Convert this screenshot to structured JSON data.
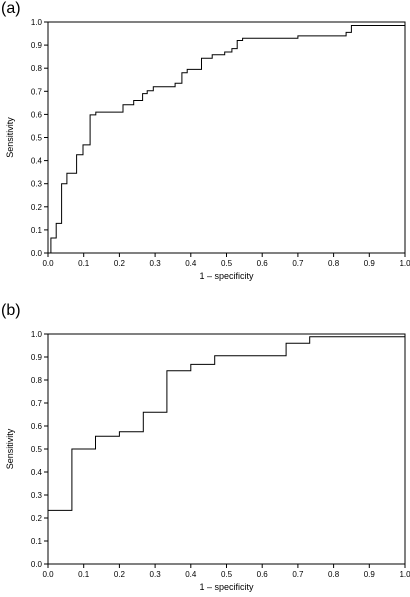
{
  "chart_data": [
    {
      "panel_label": "(a)",
      "type": "line",
      "step": true,
      "xlabel": "1 – specificity",
      "ylabel": "Sensitivity",
      "xlim": [
        0,
        1
      ],
      "ylim": [
        0,
        1
      ],
      "xticks": [
        "0.0",
        "0.1",
        "0.2",
        "0.3",
        "0.4",
        "0.5",
        "0.6",
        "0.7",
        "0.8",
        "0.9",
        "1.0"
      ],
      "yticks": [
        "0.0",
        "0.1",
        "0.2",
        "0.3",
        "0.4",
        "0.5",
        "0.6",
        "0.7",
        "0.8",
        "0.9",
        "1.0"
      ],
      "grid": false,
      "series": [
        {
          "x": [
            0,
            0.008,
            0.008,
            0.023,
            0.023,
            0.038,
            0.038,
            0.053,
            0.053,
            0.08,
            0.08,
            0.098,
            0.098,
            0.118,
            0.118,
            0.134,
            0.134,
            0.21,
            0.21,
            0.24,
            0.24,
            0.265,
            0.265,
            0.278,
            0.278,
            0.295,
            0.295,
            0.356,
            0.356,
            0.375,
            0.375,
            0.39,
            0.39,
            0.43,
            0.43,
            0.46,
            0.46,
            0.495,
            0.495,
            0.515,
            0.515,
            0.53,
            0.53,
            0.545,
            0.545,
            0.7,
            0.7,
            0.835,
            0.835,
            0.85,
            0.85,
            1.0,
            1.0
          ],
          "y": [
            0,
            0,
            0.065,
            0.065,
            0.128,
            0.128,
            0.3,
            0.3,
            0.345,
            0.345,
            0.425,
            0.425,
            0.468,
            0.468,
            0.598,
            0.598,
            0.61,
            0.61,
            0.642,
            0.642,
            0.66,
            0.66,
            0.69,
            0.69,
            0.702,
            0.702,
            0.72,
            0.72,
            0.735,
            0.735,
            0.78,
            0.78,
            0.795,
            0.795,
            0.843,
            0.843,
            0.858,
            0.858,
            0.87,
            0.87,
            0.885,
            0.885,
            0.92,
            0.92,
            0.93,
            0.93,
            0.94,
            0.94,
            0.955,
            0.955,
            0.985,
            0.985,
            1.0
          ]
        }
      ]
    },
    {
      "panel_label": "(b)",
      "type": "line",
      "step": true,
      "xlabel": "1 – specificity",
      "ylabel": "Sensitivity",
      "xlim": [
        0,
        1
      ],
      "ylim": [
        0,
        1
      ],
      "xticks": [
        "0.0",
        "0.1",
        "0.2",
        "0.3",
        "0.4",
        "0.5",
        "0.6",
        "0.7",
        "0.8",
        "0.9",
        "1.0"
      ],
      "yticks": [
        "0.0",
        "0.1",
        "0.2",
        "0.3",
        "0.4",
        "0.5",
        "0.6",
        "0.7",
        "0.8",
        "0.9",
        "1.0"
      ],
      "grid": false,
      "series": [
        {
          "x": [
            0,
            0,
            0.067,
            0.067,
            0.133,
            0.133,
            0.2,
            0.2,
            0.267,
            0.267,
            0.333,
            0.333,
            0.4,
            0.4,
            0.467,
            0.467,
            0.667,
            0.667,
            0.733,
            0.733,
            1.0,
            1.0
          ],
          "y": [
            0,
            0.233,
            0.233,
            0.5,
            0.5,
            0.555,
            0.555,
            0.575,
            0.575,
            0.66,
            0.66,
            0.84,
            0.84,
            0.868,
            0.868,
            0.905,
            0.905,
            0.96,
            0.96,
            0.988,
            0.988,
            1.0
          ]
        }
      ]
    }
  ]
}
